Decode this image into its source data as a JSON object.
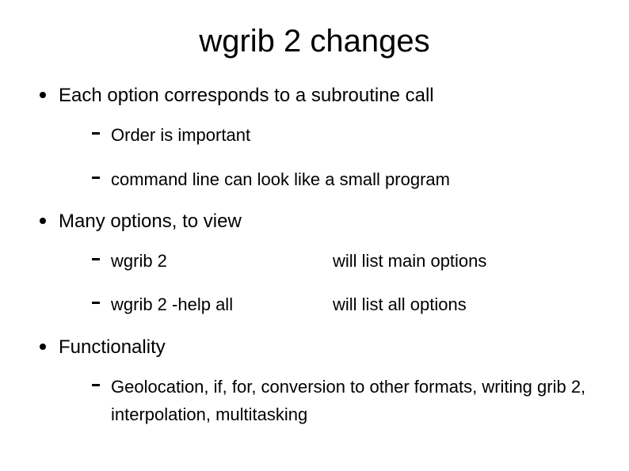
{
  "title": "wgrib 2 changes",
  "bullets": [
    {
      "text": "Each option corresponds to a subroutine call",
      "sub": [
        {
          "text": "Order is important"
        },
        {
          "text": "command line can look like a small program"
        }
      ]
    },
    {
      "text": "Many options, to view",
      "sub": [
        {
          "left": "wgrib 2",
          "right": "will list main options"
        },
        {
          "left": "wgrib 2 -help all",
          "right": "will list all options"
        }
      ]
    },
    {
      "text": "Functionality",
      "sub": [
        {
          "text": "Geolocation, if, for, conversion to other formats, writing grib 2,  interpolation, multitasking"
        }
      ]
    }
  ]
}
